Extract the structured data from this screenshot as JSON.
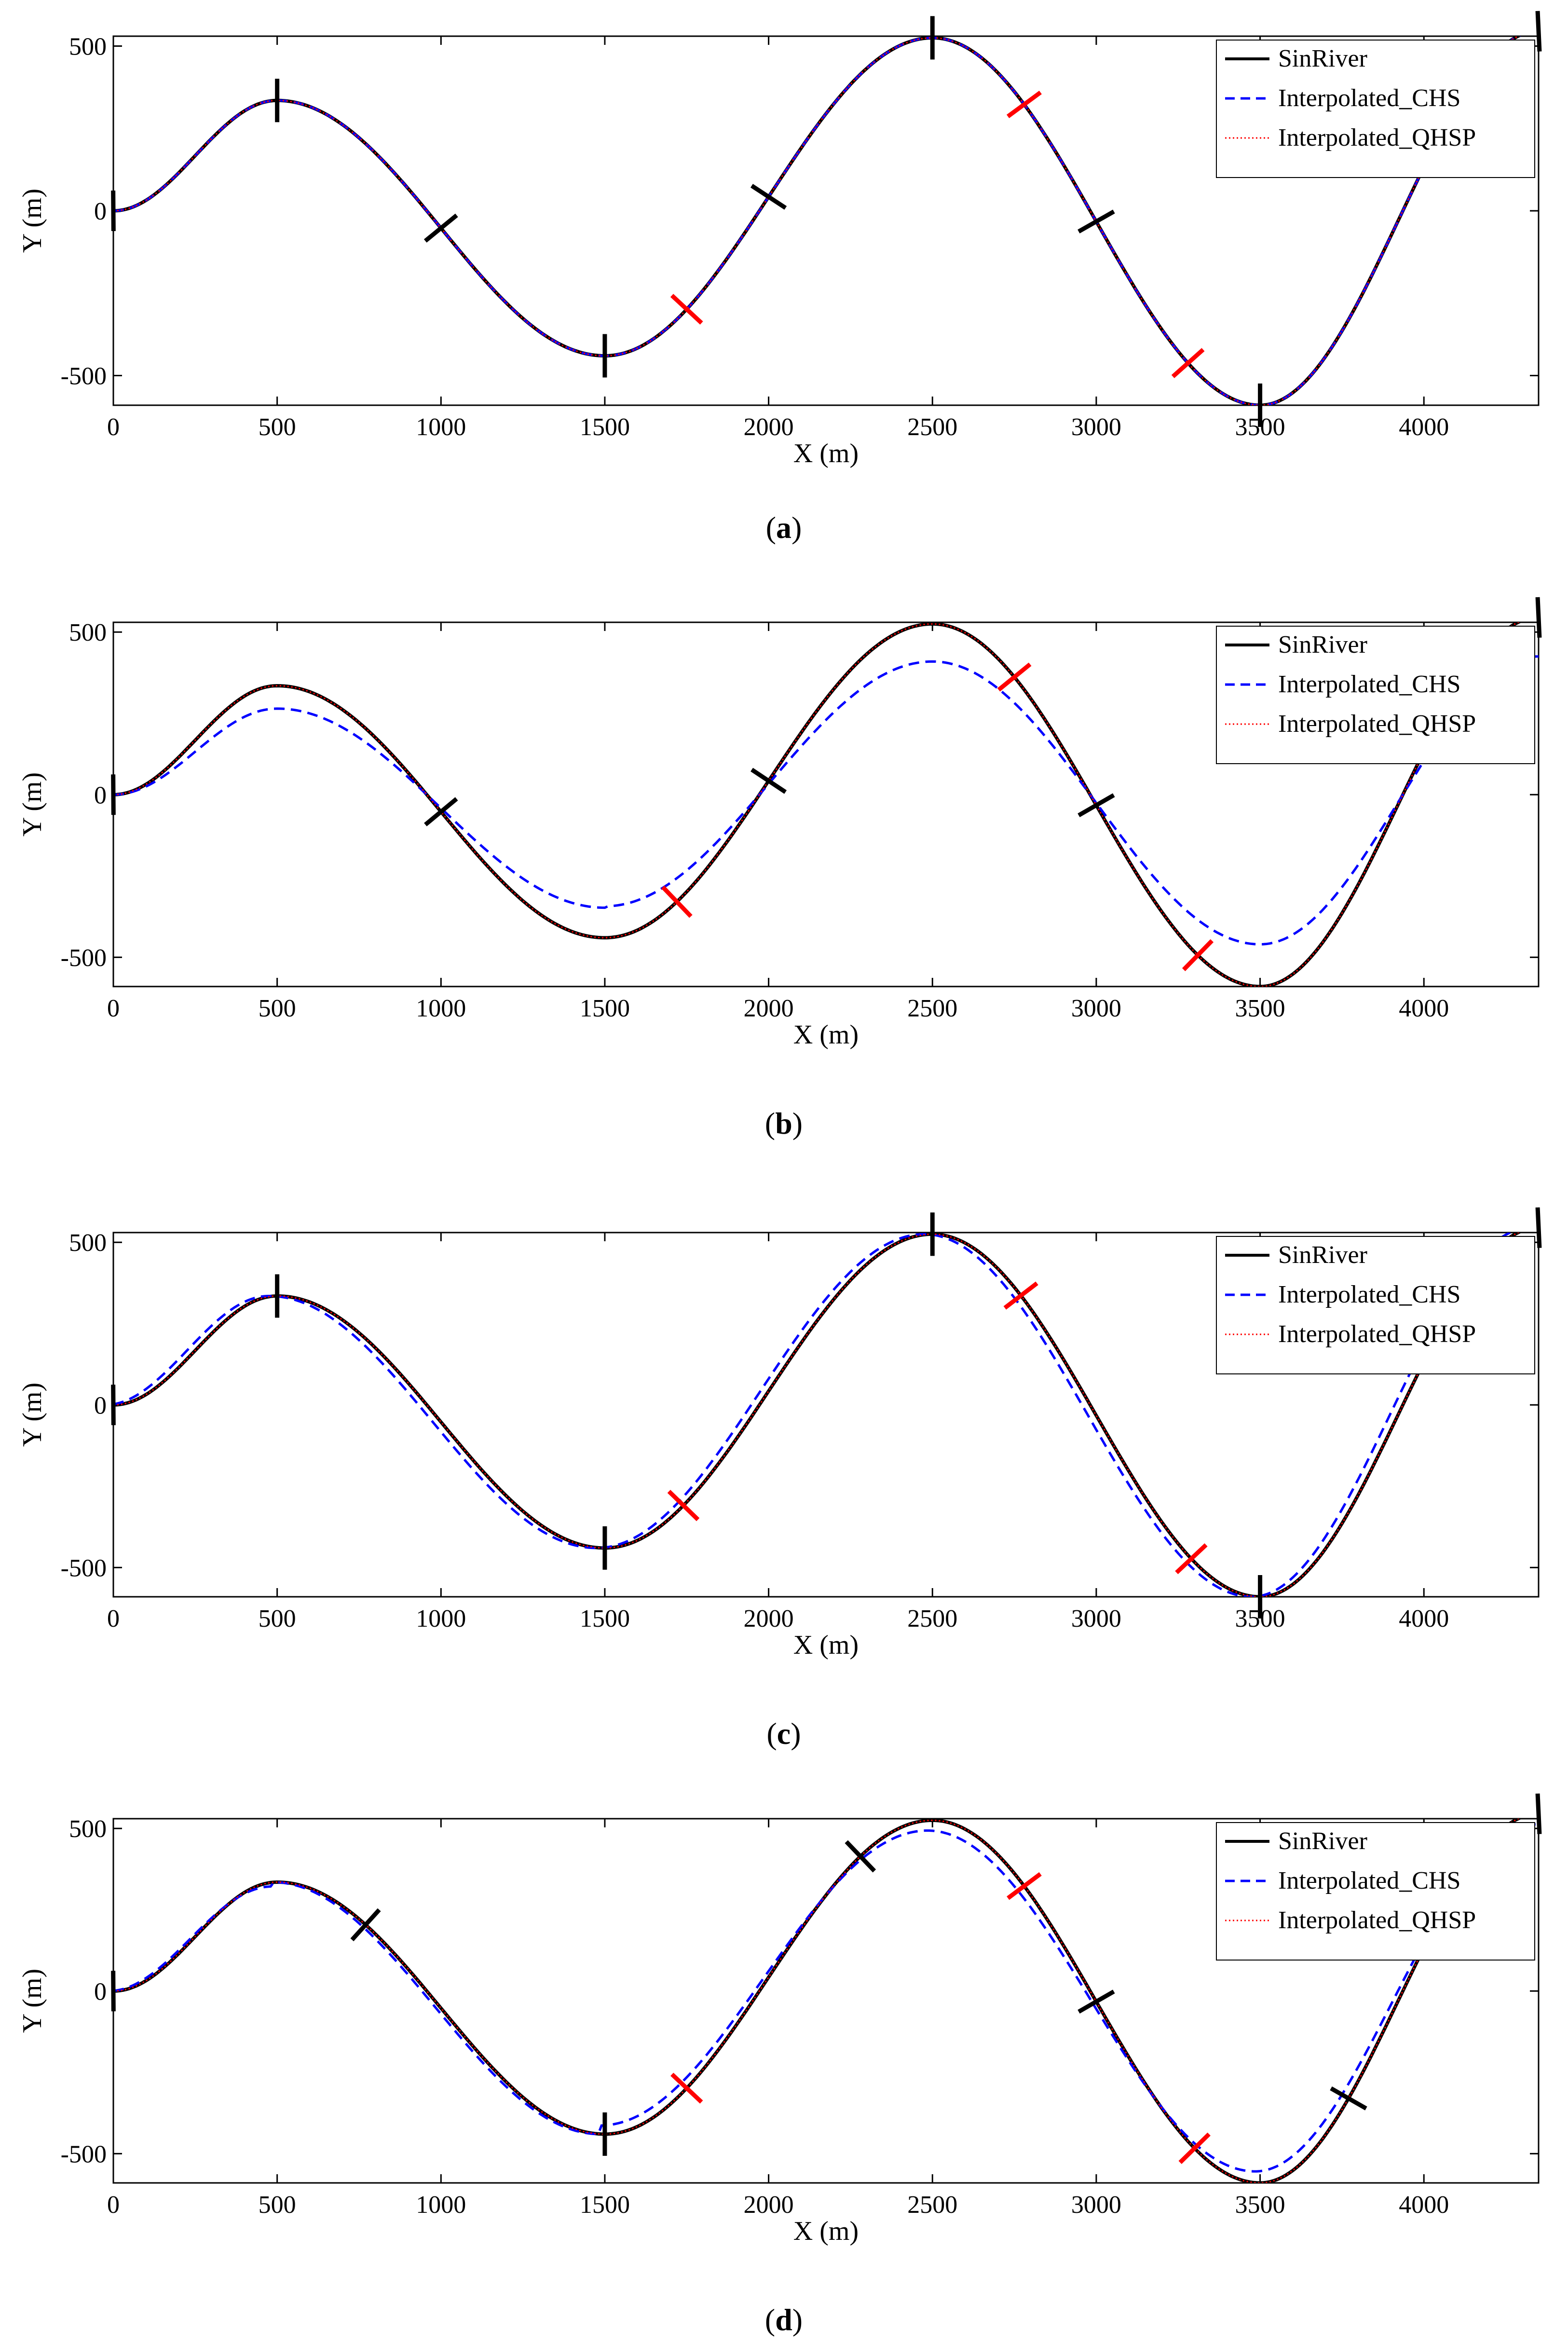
{
  "figure": {
    "panels": [
      {
        "id": "a",
        "caption": "(a)"
      },
      {
        "id": "b",
        "caption": "(b)"
      },
      {
        "id": "c",
        "caption": "(c)"
      },
      {
        "id": "d",
        "caption": "(d)"
      }
    ]
  },
  "chart_data": [
    {
      "panel": "a",
      "type": "line",
      "title": "",
      "xlabel": "X (m)",
      "ylabel": "Y (m)",
      "xlim": [
        0,
        4350
      ],
      "ylim": [
        -590,
        530
      ],
      "xticks": [
        0,
        500,
        1000,
        1500,
        2000,
        2500,
        3000,
        3500,
        4000
      ],
      "yticks": [
        -500,
        0,
        500
      ],
      "legend_position": "top-right",
      "series": [
        {
          "name": "SinRiver",
          "color": "#000000",
          "style": "solid"
        },
        {
          "name": "Interpolated_CHS",
          "color": "#0000ff",
          "style": "dashed",
          "amp_scale": [
            1.0,
            1.0,
            1.0,
            1.0
          ],
          "x_shift": 0
        },
        {
          "name": "Interpolated_QHSP",
          "color": "#ff0000",
          "style": "dotted"
        }
      ],
      "river_points": {
        "x": [
          0,
          500,
          1500,
          2500,
          3500,
          4350
        ],
        "y": [
          0,
          335,
          -440,
          525,
          -590,
          545
        ]
      },
      "black_markers": [
        [
          0,
          "normal"
        ],
        [
          500,
          "vertical"
        ],
        [
          1000,
          "normal"
        ],
        [
          1500,
          "vertical"
        ],
        [
          2000,
          "normal"
        ],
        [
          2500,
          "vertical"
        ],
        [
          3000,
          "normal"
        ],
        [
          3500,
          "vertical"
        ],
        [
          4000,
          "normal"
        ],
        [
          4350,
          "normal"
        ]
      ],
      "red_markers": [
        1750,
        2780,
        3280
      ]
    },
    {
      "panel": "b",
      "type": "line",
      "title": "",
      "xlabel": "X (m)",
      "ylabel": "Y (m)",
      "xlim": [
        0,
        4350
      ],
      "ylim": [
        -590,
        530
      ],
      "xticks": [
        0,
        500,
        1000,
        1500,
        2000,
        2500,
        3000,
        3500,
        4000
      ],
      "yticks": [
        -500,
        0,
        500
      ],
      "legend_position": "top-right",
      "series": [
        {
          "name": "SinRiver",
          "color": "#000000",
          "style": "solid"
        },
        {
          "name": "Interpolated_CHS",
          "color": "#0000ff",
          "style": "dashed",
          "amp_scale": [
            0.79,
            0.79,
            0.78,
            0.78
          ],
          "x_shift": 0
        },
        {
          "name": "Interpolated_QHSP",
          "color": "#ff0000",
          "style": "dotted"
        }
      ],
      "river_points": {
        "x": [
          0,
          500,
          1500,
          2500,
          3500,
          4350
        ],
        "y": [
          0,
          335,
          -440,
          525,
          -590,
          545
        ]
      },
      "black_markers": [
        [
          0,
          "normal"
        ],
        [
          1000,
          "normal"
        ],
        [
          2000,
          "normal"
        ],
        [
          3000,
          "normal"
        ],
        [
          4000,
          "normal"
        ],
        [
          4350,
          "normal"
        ]
      ],
      "red_markers": [
        1720,
        2750,
        3310
      ]
    },
    {
      "panel": "c",
      "type": "line",
      "title": "",
      "xlabel": "X (m)",
      "ylabel": "Y (m)",
      "xlim": [
        0,
        4350
      ],
      "ylim": [
        -590,
        530
      ],
      "xticks": [
        0,
        500,
        1000,
        1500,
        2000,
        2500,
        3000,
        3500,
        4000
      ],
      "yticks": [
        -500,
        0,
        500
      ],
      "legend_position": "top-right",
      "series": [
        {
          "name": "SinRiver",
          "color": "#000000",
          "style": "solid"
        },
        {
          "name": "Interpolated_CHS",
          "color": "#0000ff",
          "style": "dashed",
          "amp_scale": [
            1.0,
            1.0,
            1.0,
            1.0
          ],
          "x_shift": -25
        },
        {
          "name": "Interpolated_QHSP",
          "color": "#ff0000",
          "style": "dotted"
        }
      ],
      "river_points": {
        "x": [
          0,
          500,
          1500,
          2500,
          3500,
          4350
        ],
        "y": [
          0,
          335,
          -440,
          525,
          -590,
          545
        ]
      },
      "black_markers": [
        [
          0,
          "normal"
        ],
        [
          500,
          "vertical"
        ],
        [
          1500,
          "vertical"
        ],
        [
          2500,
          "vertical"
        ],
        [
          3500,
          "vertical"
        ],
        [
          4350,
          "normal"
        ]
      ],
      "red_markers": [
        1740,
        2770,
        3290
      ]
    },
    {
      "panel": "d",
      "type": "line",
      "title": "",
      "xlabel": "X (m)",
      "ylabel": "Y (m)",
      "xlim": [
        0,
        4350
      ],
      "ylim": [
        -590,
        530
      ],
      "xticks": [
        0,
        500,
        1000,
        1500,
        2000,
        2500,
        3000,
        3500,
        4000
      ],
      "yticks": [
        -500,
        0,
        500
      ],
      "legend_position": "top-right",
      "series": [
        {
          "name": "SinRiver",
          "color": "#000000",
          "style": "solid"
        },
        {
          "name": "Interpolated_CHS",
          "color": "#0000ff",
          "style": "dashed",
          "amp_scale": [
            0.96,
            1.0,
            0.94,
            0.94
          ],
          "x_shift": -15
        },
        {
          "name": "Interpolated_QHSP",
          "color": "#ff0000",
          "style": "dotted"
        }
      ],
      "river_points": {
        "x": [
          0,
          500,
          1500,
          2500,
          3500,
          4350
        ],
        "y": [
          0,
          335,
          -440,
          525,
          -590,
          545
        ]
      },
      "black_markers": [
        [
          0,
          "normal"
        ],
        [
          770,
          "normal"
        ],
        [
          1500,
          "vertical"
        ],
        [
          2280,
          "normal"
        ],
        [
          3000,
          "normal"
        ],
        [
          3770,
          "normal"
        ],
        [
          4350,
          "normal"
        ]
      ],
      "red_markers": [
        1750,
        2780,
        3300
      ]
    }
  ]
}
